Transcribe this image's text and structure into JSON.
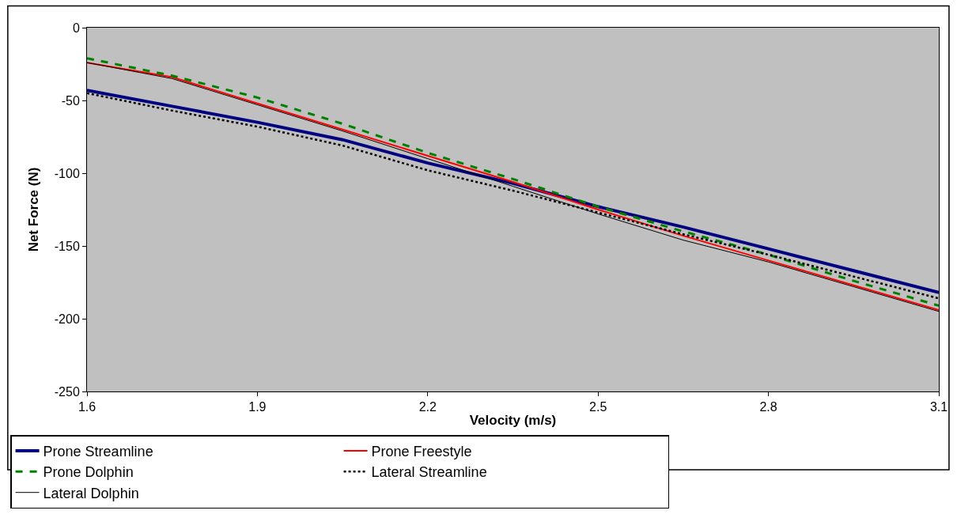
{
  "chart_data": {
    "type": "line",
    "xlabel": "Velocity (m/s)",
    "ylabel": "Net Force (N)",
    "x": [
      1.6,
      1.75,
      1.9,
      2.05,
      2.2,
      2.35,
      2.5,
      2.65,
      2.8,
      2.95,
      3.1
    ],
    "xlim": [
      1.6,
      3.1
    ],
    "xticks": [
      1.6,
      1.9,
      2.2,
      2.5,
      2.8,
      3.1
    ],
    "ylim": [
      -250,
      0
    ],
    "yticks": [
      -250,
      -200,
      -150,
      -100,
      -50,
      0
    ],
    "grid": false,
    "legend": "bottom",
    "marker": "none",
    "series": [
      {
        "name": "Prone Streamline",
        "color": "#000080",
        "line_style": "solid",
        "values": [
          -43,
          -54,
          -65,
          -77,
          -93,
          -107,
          -123,
          -137,
          -152,
          -167,
          -182
        ]
      },
      {
        "name": "Prone Freestyle",
        "color": "#ff0000",
        "line_style": "solid",
        "values": [
          -24,
          -34,
          -52,
          -70,
          -88,
          -106,
          -125,
          -143,
          -160,
          -177,
          -194
        ]
      },
      {
        "name": "Prone Dolphin",
        "color": "#008000",
        "line_style": "dashed",
        "values": [
          -21,
          -33,
          -48,
          -66,
          -86,
          -104,
          -123,
          -140,
          -156,
          -174,
          -191
        ]
      },
      {
        "name": "Lateral Streamline",
        "color": "#000000",
        "line_style": "dotted",
        "values": [
          -45,
          -57,
          -68,
          -81,
          -98,
          -112,
          -127,
          -142,
          -156,
          -171,
          -186
        ]
      },
      {
        "name": "Lateral Dolphin",
        "color": "#000000",
        "line_style": "solid",
        "values": [
          -24,
          -35,
          -53,
          -71,
          -90,
          -109,
          -128,
          -146,
          -161,
          -178,
          -195
        ]
      }
    ]
  }
}
